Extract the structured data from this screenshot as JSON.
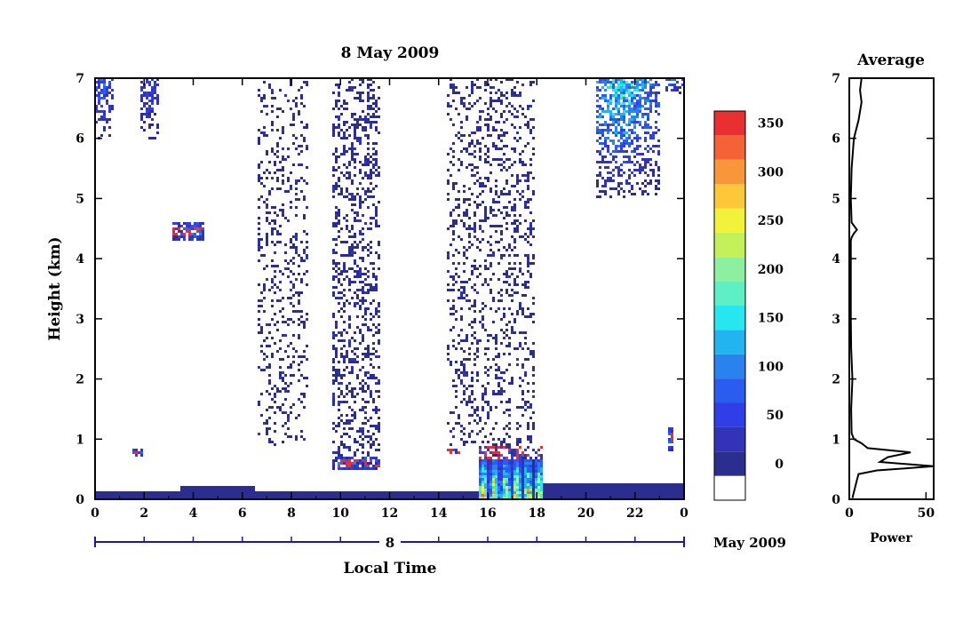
{
  "chart_data": [
    {
      "type": "heatmap",
      "title": "8 May 2009",
      "xlabel": "Local Time",
      "ylabel": "Height (km)",
      "xlim": [
        0,
        24
      ],
      "ylim": [
        0,
        7
      ],
      "x_ticks": [
        "0",
        "2",
        "4",
        "6",
        "8",
        "10",
        "12",
        "14",
        "16",
        "18",
        "20",
        "22",
        "0"
      ],
      "y_ticks": [
        "0",
        "1",
        "2",
        "3",
        "4",
        "5",
        "6",
        "7"
      ],
      "date_bar": {
        "day_label": "8",
        "month_label": "May 2009"
      },
      "colorbar": {
        "ticks": [
          "0",
          "50",
          "100",
          "150",
          "200",
          "250",
          "300",
          "350"
        ],
        "levels": [
          {
            "from": -25,
            "to": 0,
            "color": "#ffffff"
          },
          {
            "from": 0,
            "to": 25,
            "color": "#2b2e8e"
          },
          {
            "from": 25,
            "to": 50,
            "color": "#3333b8"
          },
          {
            "from": 50,
            "to": 75,
            "color": "#2f3ee6"
          },
          {
            "from": 75,
            "to": 100,
            "color": "#2a5cf0"
          },
          {
            "from": 100,
            "to": 125,
            "color": "#2a82ee"
          },
          {
            "from": 125,
            "to": 150,
            "color": "#22b4f0"
          },
          {
            "from": 150,
            "to": 175,
            "color": "#27e6f0"
          },
          {
            "from": 175,
            "to": 200,
            "color": "#5cf0c4"
          },
          {
            "from": 200,
            "to": 225,
            "color": "#8cf0a0"
          },
          {
            "from": 225,
            "to": 250,
            "color": "#c4f05a"
          },
          {
            "from": 250,
            "to": 275,
            "color": "#f2f23a"
          },
          {
            "from": 275,
            "to": 300,
            "color": "#fcc83a"
          },
          {
            "from": 300,
            "to": 325,
            "color": "#f8963a"
          },
          {
            "from": 325,
            "to": 350,
            "color": "#f46236"
          },
          {
            "from": 350,
            "to": 375,
            "color": "#e83030"
          }
        ]
      },
      "features": [
        {
          "kind": "surface_layer",
          "x": [
            0,
            24
          ],
          "y": [
            0,
            0.12
          ],
          "level": 20
        },
        {
          "kind": "surface_layer",
          "x": [
            3.5,
            6.5
          ],
          "y": [
            0.12,
            0.22
          ],
          "level": 20
        },
        {
          "kind": "surface_layer",
          "x": [
            15.6,
            24
          ],
          "y": [
            0.12,
            0.25
          ],
          "level": 20
        },
        {
          "kind": "convective_plume",
          "x": [
            15.6,
            18.2
          ],
          "y": [
            0,
            0.9
          ],
          "peak": 380
        },
        {
          "kind": "echo_band",
          "x": [
            9.9,
            11.6
          ],
          "y": [
            0.5,
            0.7
          ],
          "peak": 380
        },
        {
          "kind": "echo_band",
          "x": [
            1.5,
            2.0
          ],
          "y": [
            0.72,
            0.85
          ],
          "peak": 380
        },
        {
          "kind": "echo_band",
          "x": [
            14.3,
            14.9
          ],
          "y": [
            0.75,
            0.85
          ],
          "peak": 380
        },
        {
          "kind": "echo_band",
          "x": [
            23.3,
            23.6
          ],
          "y": [
            0.8,
            1.2
          ],
          "peak": 380
        },
        {
          "kind": "echo_band",
          "x": [
            3.1,
            4.5
          ],
          "y": [
            4.3,
            4.6
          ],
          "peak": 380
        },
        {
          "kind": "scatter_region",
          "x": [
            6.6,
            8.7
          ],
          "y": [
            0.9,
            7
          ],
          "density": 0.18
        },
        {
          "kind": "scatter_region",
          "x": [
            9.7,
            11.6
          ],
          "y": [
            0.5,
            7
          ],
          "density": 0.3
        },
        {
          "kind": "scatter_region",
          "x": [
            14.3,
            17.9
          ],
          "y": [
            0.9,
            7
          ],
          "density": 0.22
        },
        {
          "kind": "high_cloud",
          "x": [
            0,
            0.8
          ],
          "y": [
            6.0,
            7
          ],
          "peak": 120
        },
        {
          "kind": "high_cloud",
          "x": [
            1.9,
            2.6
          ],
          "y": [
            6.0,
            7
          ],
          "peak": 90
        },
        {
          "kind": "high_cloud",
          "x": [
            20.4,
            23
          ],
          "y": [
            5.0,
            7
          ],
          "peak": 190
        },
        {
          "kind": "high_cloud",
          "x": [
            23.2,
            24
          ],
          "y": [
            6.7,
            7
          ],
          "peak": 120
        }
      ]
    },
    {
      "type": "line",
      "title": "Average",
      "xlabel": "Power",
      "ylabel": "",
      "xlim": [
        0,
        55
      ],
      "ylim": [
        0,
        7
      ],
      "x_ticks": [
        "0",
        "50"
      ],
      "y_ticks": [
        "0",
        "1",
        "2",
        "3",
        "4",
        "5",
        "6",
        "7"
      ],
      "series": [
        {
          "x": [
            2,
            3,
            4,
            5,
            6,
            18,
            40,
            55,
            20,
            25,
            40,
            12,
            8,
            3,
            1.5,
            1.2,
            2,
            1.2,
            1,
            1,
            1,
            1,
            1.5,
            3,
            5,
            1.5,
            1,
            1.5,
            3,
            6,
            8,
            7,
            8
          ],
          "y": [
            0.02,
            0.12,
            0.22,
            0.32,
            0.42,
            0.48,
            0.52,
            0.55,
            0.62,
            0.7,
            0.78,
            0.85,
            0.93,
            1.0,
            1.1,
            1.5,
            2.0,
            2.5,
            3.0,
            3.5,
            4.0,
            4.3,
            4.35,
            4.42,
            4.48,
            4.6,
            5.0,
            5.5,
            6.0,
            6.3,
            6.6,
            6.8,
            7.0
          ]
        }
      ]
    }
  ]
}
